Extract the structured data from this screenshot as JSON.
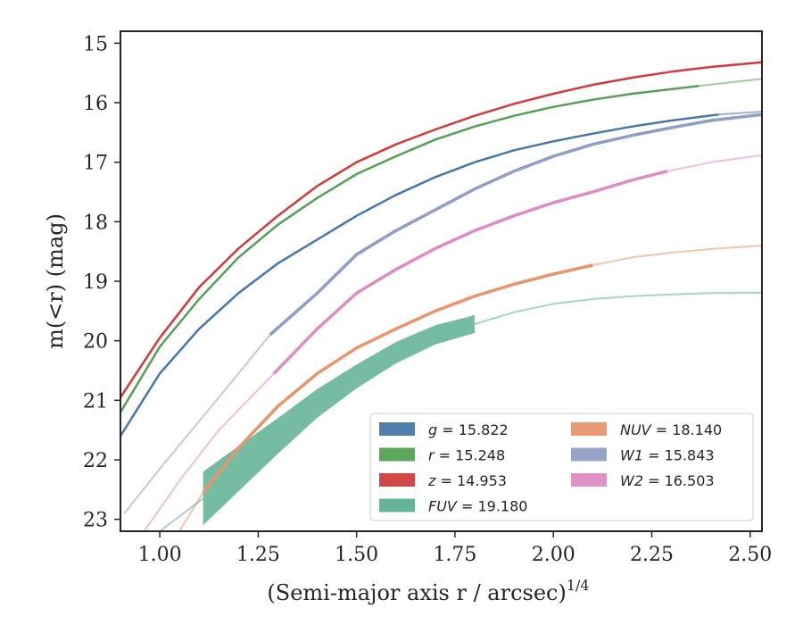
{
  "chart_data": {
    "type": "line",
    "xlabel": "(Semi-major axis r / arcsec)",
    "xlabel_sup": "1/4",
    "ylabel": "m(<r) (mag)",
    "xlim": [
      0.9,
      2.53
    ],
    "ylim": [
      23.2,
      14.8
    ],
    "y_inverted": true,
    "xticks": [
      1.0,
      1.25,
      1.5,
      1.75,
      2.0,
      2.25,
      2.5
    ],
    "xtick_labels": [
      "1.00",
      "1.25",
      "1.50",
      "1.75",
      "2.00",
      "2.25",
      "2.50"
    ],
    "yticks": [
      15,
      16,
      17,
      18,
      19,
      20,
      21,
      22,
      23
    ],
    "ytick_labels": [
      "15",
      "16",
      "17",
      "18",
      "19",
      "20",
      "21",
      "22",
      "23"
    ],
    "legend_position": "lower-right",
    "series": [
      {
        "name": "g",
        "legend_label": "g = 15.822",
        "color": "#4878a8",
        "x": [
          0.9,
          1.0,
          1.1,
          1.2,
          1.3,
          1.4,
          1.5,
          1.6,
          1.7,
          1.8,
          1.9,
          2.0,
          2.1,
          2.2,
          2.3,
          2.42
        ],
        "y": [
          21.6,
          20.55,
          19.8,
          19.2,
          18.7,
          18.3,
          17.9,
          17.55,
          17.25,
          17.0,
          16.8,
          16.65,
          16.52,
          16.4,
          16.3,
          16.2
        ],
        "ext_x": [
          2.42,
          2.53
        ],
        "ext_y": [
          16.2,
          16.15
        ]
      },
      {
        "name": "r",
        "legend_label": "r = 15.248",
        "color": "#55a055",
        "x": [
          0.9,
          1.0,
          1.1,
          1.2,
          1.3,
          1.4,
          1.5,
          1.6,
          1.7,
          1.8,
          1.9,
          2.0,
          2.1,
          2.2,
          2.37
        ],
        "y": [
          21.2,
          20.1,
          19.3,
          18.6,
          18.05,
          17.6,
          17.2,
          16.9,
          16.62,
          16.4,
          16.22,
          16.07,
          15.95,
          15.85,
          15.72
        ],
        "ext_x": [
          2.37,
          2.53
        ],
        "ext_y": [
          15.72,
          15.6
        ]
      },
      {
        "name": "z",
        "legend_label": "z = 14.953",
        "color": "#d03c3c",
        "x": [
          0.9,
          1.0,
          1.1,
          1.2,
          1.3,
          1.4,
          1.5,
          1.6,
          1.7,
          1.8,
          1.9,
          2.0,
          2.1,
          2.2,
          2.3,
          2.4,
          2.53
        ],
        "y": [
          20.95,
          19.95,
          19.1,
          18.45,
          17.9,
          17.4,
          17.0,
          16.7,
          16.45,
          16.22,
          16.02,
          15.85,
          15.7,
          15.58,
          15.48,
          15.4,
          15.32
        ],
        "ext_x": [],
        "ext_y": []
      },
      {
        "name": "FUV",
        "legend_label": "FUV = 19.180",
        "color": "#5db093",
        "band": true,
        "x": [
          1.11,
          1.2,
          1.3,
          1.4,
          1.5,
          1.6,
          1.7,
          1.8
        ],
        "y": [
          22.65,
          22.15,
          21.6,
          21.05,
          20.6,
          20.2,
          19.9,
          19.72
        ],
        "band_half": [
          0.45,
          0.38,
          0.3,
          0.24,
          0.2,
          0.18,
          0.16,
          0.15
        ],
        "ext_x": [
          1.11,
          1.0,
          0.92
        ],
        "ext_y": [
          22.65,
          23.2,
          23.5
        ],
        "ext2_x": [
          1.8,
          1.9,
          2.0,
          2.1,
          2.2,
          2.3,
          2.4,
          2.53
        ],
        "ext2_y": [
          19.72,
          19.52,
          19.38,
          19.3,
          19.25,
          19.22,
          19.2,
          19.19
        ]
      },
      {
        "name": "NUV",
        "legend_label": "NUV = 18.140",
        "color": "#e8956e",
        "x": [
          1.11,
          1.2,
          1.3,
          1.4,
          1.5,
          1.6,
          1.7,
          1.8,
          1.9,
          2.0,
          2.1
        ],
        "y": [
          22.55,
          21.8,
          21.1,
          20.55,
          20.12,
          19.8,
          19.5,
          19.25,
          19.05,
          18.88,
          18.73
        ],
        "ext_x": [
          2.1,
          2.2,
          2.3,
          2.4,
          2.53
        ],
        "ext_y": [
          18.73,
          18.6,
          18.52,
          18.46,
          18.4
        ],
        "ext0_x": [
          1.11,
          1.04
        ],
        "ext0_y": [
          22.55,
          23.3
        ]
      },
      {
        "name": "W1",
        "legend_label": "W1 = 15.843",
        "color": "#8f9fc4",
        "x": [
          1.28,
          1.4,
          1.5,
          1.6,
          1.7,
          1.8,
          1.9,
          2.0,
          2.1,
          2.2,
          2.3,
          2.4,
          2.53
        ],
        "y": [
          19.9,
          19.2,
          18.55,
          18.15,
          17.8,
          17.45,
          17.15,
          16.9,
          16.7,
          16.55,
          16.42,
          16.3,
          16.2
        ],
        "ext_x": [
          0.91,
          1.0,
          1.1,
          1.2,
          1.28
        ],
        "ext_y": [
          22.9,
          22.15,
          21.35,
          20.55,
          19.9
        ]
      },
      {
        "name": "W2",
        "legend_label": "W2 = 16.503",
        "color": "#dd8cc4",
        "x": [
          1.29,
          1.4,
          1.5,
          1.6,
          1.7,
          1.8,
          1.9,
          2.0,
          2.1,
          2.2,
          2.29
        ],
        "y": [
          20.55,
          19.8,
          19.2,
          18.8,
          18.45,
          18.15,
          17.9,
          17.68,
          17.5,
          17.3,
          17.15
        ],
        "ext_x": [
          2.29,
          2.4,
          2.53
        ],
        "ext_y": [
          17.15,
          17.0,
          16.88
        ],
        "ext0_x": [
          0.96,
          1.05,
          1.15,
          1.29
        ],
        "ext0_y": [
          23.2,
          22.35,
          21.5,
          20.55
        ]
      }
    ]
  }
}
